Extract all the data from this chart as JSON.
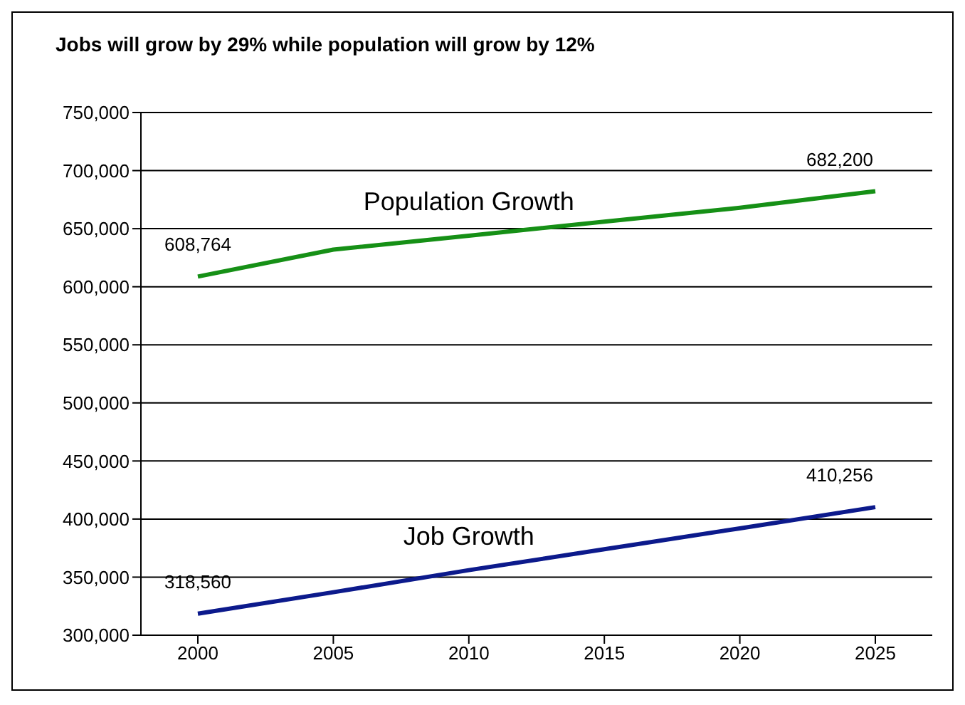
{
  "chart_data": {
    "type": "line",
    "title": "Jobs will grow by 29% while population will grow by 12%",
    "categories": [
      "2000",
      "2005",
      "2010",
      "2015",
      "2020",
      "2025"
    ],
    "series": [
      {
        "name": "Population Growth",
        "color": "#169016",
        "values": [
          608764,
          632000,
          644000,
          656000,
          668000,
          682200
        ],
        "value_labels": [
          "608,764",
          null,
          null,
          null,
          null,
          "682,200"
        ]
      },
      {
        "name": "Job Growth",
        "color": "#0c1a8c",
        "values": [
          318560,
          337000,
          356000,
          374000,
          392000,
          410256
        ],
        "value_labels": [
          "318,560",
          null,
          null,
          null,
          null,
          "410,256"
        ]
      }
    ],
    "ylim": [
      300000,
      750000
    ],
    "yticks": [
      {
        "value": 300000,
        "label": "300,000"
      },
      {
        "value": 350000,
        "label": "350,000"
      },
      {
        "value": 400000,
        "label": "400,000"
      },
      {
        "value": 450000,
        "label": "450,000"
      },
      {
        "value": 500000,
        "label": "500,000"
      },
      {
        "value": 550000,
        "label": "550,000"
      },
      {
        "value": 600000,
        "label": "600,000"
      },
      {
        "value": 650000,
        "label": "650,000"
      },
      {
        "value": 700000,
        "label": "700,000"
      },
      {
        "value": 750000,
        "label": "750,000"
      }
    ],
    "grid": "y",
    "marker": "none",
    "line_style": "solid"
  }
}
